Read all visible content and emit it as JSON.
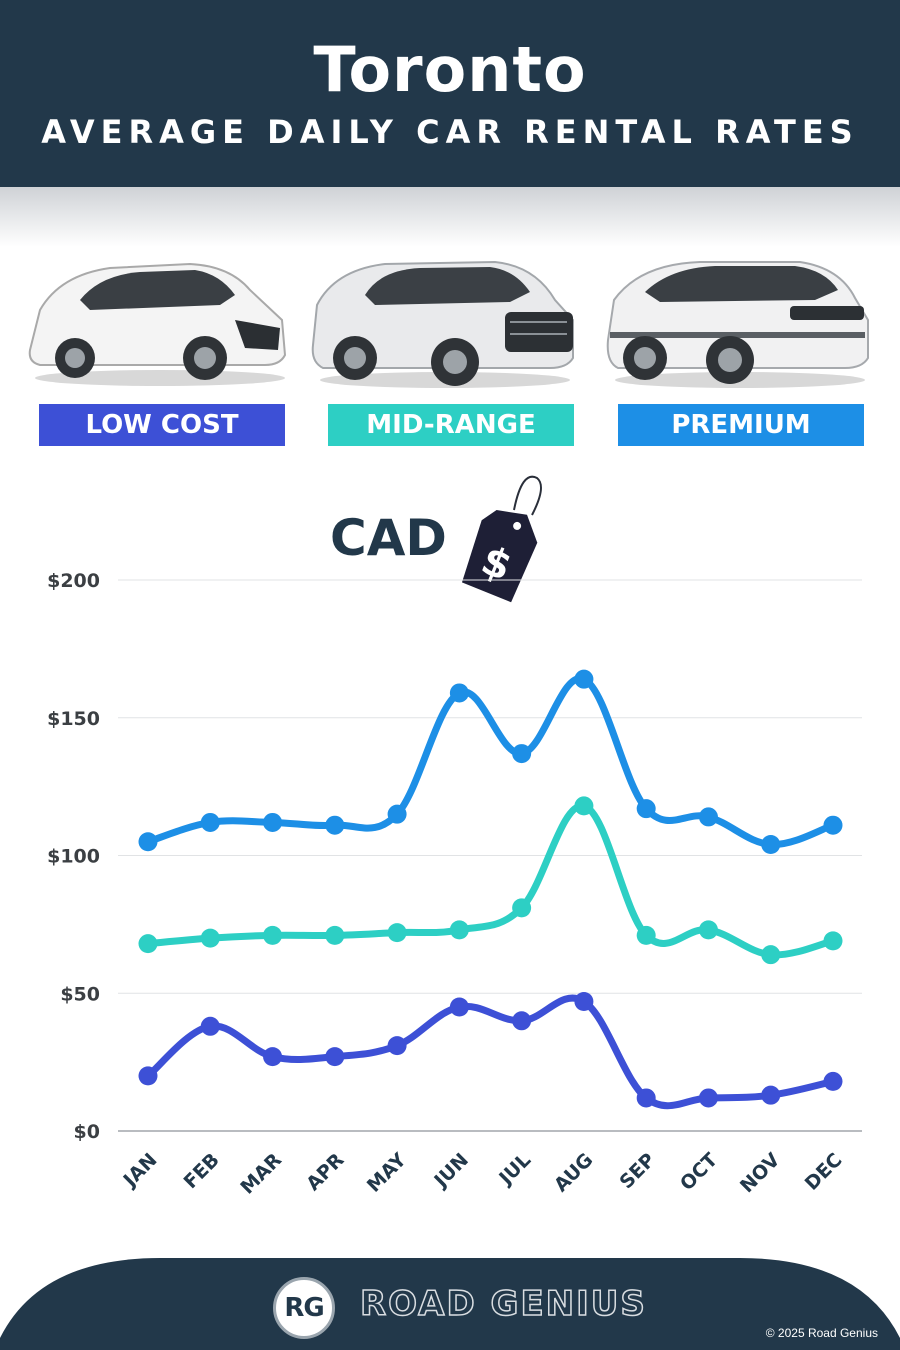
{
  "header": {
    "city": "Toronto",
    "subtitle": "AVERAGE DAILY CAR RENTAL RATES"
  },
  "categories": [
    {
      "label": "LOW COST",
      "color": "#3d50d6"
    },
    {
      "label": "MID-RANGE",
      "color": "#2dcfc4"
    },
    {
      "label": "PREMIUM",
      "color": "#1d8fe6"
    }
  ],
  "currency": {
    "label": "CAD",
    "tag_symbol": "$"
  },
  "chart_data": {
    "type": "line",
    "categories": [
      "JAN",
      "FEB",
      "MAR",
      "APR",
      "MAY",
      "JUN",
      "JUL",
      "AUG",
      "SEP",
      "OCT",
      "NOV",
      "DEC"
    ],
    "y_ticks": [
      "$0",
      "$50",
      "$100",
      "$150",
      "$200"
    ],
    "ylim": [
      0,
      200
    ],
    "grid": true,
    "series": [
      {
        "name": "PREMIUM",
        "color": "#1d8fe6",
        "values": [
          105,
          112,
          112,
          111,
          115,
          159,
          137,
          164,
          117,
          114,
          104,
          111
        ]
      },
      {
        "name": "MID-RANGE",
        "color": "#2dcfc4",
        "values": [
          68,
          70,
          71,
          71,
          72,
          73,
          81,
          118,
          71,
          73,
          64,
          69
        ]
      },
      {
        "name": "LOW COST",
        "color": "#3d50d6",
        "values": [
          20,
          38,
          27,
          27,
          31,
          45,
          40,
          47,
          12,
          12,
          13,
          18
        ]
      }
    ]
  },
  "footer": {
    "logo_initials": "RG",
    "brand": "ROAD GENIUS",
    "copyright": "© 2025 Road Genius"
  }
}
